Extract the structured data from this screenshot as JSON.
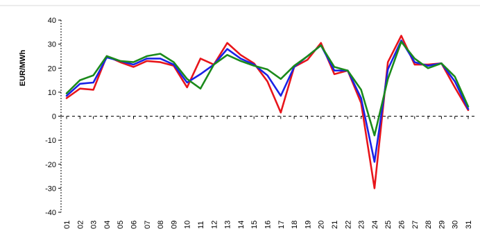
{
  "chart_data": {
    "type": "line",
    "ylabel": "EUR/MWh",
    "xlabel": "",
    "ylim": [
      -40,
      40
    ],
    "yticks": [
      40,
      30,
      20,
      10,
      0,
      -10,
      -20,
      -30,
      -40
    ],
    "grid": false,
    "zero_line": "dashed",
    "categories": [
      "01",
      "02",
      "03",
      "04",
      "05",
      "06",
      "07",
      "08",
      "09",
      "10",
      "11",
      "12",
      "13",
      "14",
      "15",
      "16",
      "17",
      "18",
      "19",
      "20",
      "21",
      "22",
      "23",
      "24",
      "25",
      "26",
      "27",
      "28",
      "29",
      "30",
      "31"
    ],
    "series": [
      {
        "color": "#e8151b",
        "values": [
          7.5,
          11.5,
          11,
          25,
          22.5,
          20.5,
          23,
          22.5,
          21,
          12,
          24,
          21.5,
          30.5,
          25.5,
          22,
          14.5,
          1.5,
          20.5,
          23.5,
          30.5,
          17.5,
          19,
          5.5,
          -30,
          22.5,
          33.5,
          21.5,
          21.5,
          22,
          12,
          2.5
        ]
      },
      {
        "color": "#1a22e6",
        "values": [
          8.5,
          13.5,
          14,
          24.5,
          23,
          21.5,
          24,
          24,
          21.5,
          14,
          17.5,
          21.5,
          28,
          24,
          21.5,
          17,
          8.5,
          20.5,
          25,
          29.5,
          19,
          19,
          7.5,
          -19,
          19.5,
          31.5,
          22.5,
          21,
          22,
          14.5,
          3
        ]
      },
      {
        "color": "#1b8a1b",
        "values": [
          9.5,
          15,
          17,
          25,
          23,
          22.5,
          25,
          26,
          22.5,
          15.5,
          11.5,
          21.5,
          25.5,
          23,
          21,
          19.5,
          15.5,
          21,
          25,
          29.5,
          20.5,
          19,
          11,
          -8,
          15.5,
          31,
          24,
          20,
          22,
          16.5,
          4
        ]
      }
    ]
  }
}
